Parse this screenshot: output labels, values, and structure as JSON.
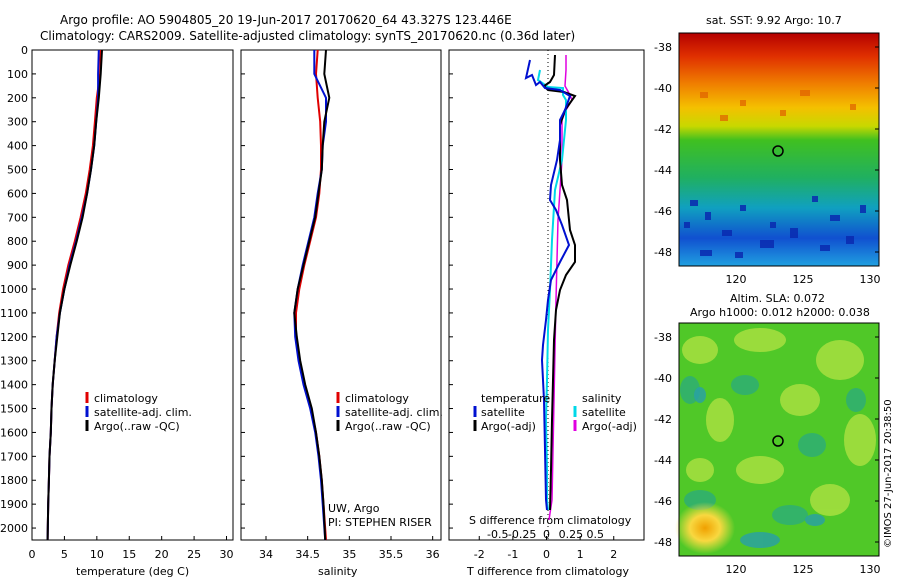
{
  "header": {
    "line1": "Argo profile: AO 5904805_20 19-Jun-2017 20170620_64 43.327S 123.446E",
    "line2": "Climatology: CARS2009. Satellite-adjusted climatology: synTS_20170620.nc (0.36d later)"
  },
  "colors": {
    "climatology": "#e00000",
    "satellite": "#0010d0",
    "argo": "#000000",
    "sal_satellite": "#00d8e8",
    "sal_argo": "#e000e0"
  },
  "depth_axis": {
    "ticks": [
      "0",
      "100",
      "200",
      "300",
      "400",
      "500",
      "600",
      "700",
      "800",
      "900",
      "1000",
      "1100",
      "1200",
      "1300",
      "1400",
      "1500",
      "1600",
      "1700",
      "1800",
      "1900",
      "2000"
    ]
  },
  "temp_panel": {
    "xlabel": "temperature (deg C)",
    "xticks": [
      "0",
      "5",
      "10",
      "15",
      "20",
      "25",
      "30"
    ],
    "legend": [
      "climatology",
      "satellite-adj. clim.",
      "Argo(..raw -QC)"
    ]
  },
  "sal_panel": {
    "xlabel": "salinity",
    "xticks": [
      "34",
      "34.5",
      "35",
      "35.5",
      "36"
    ],
    "legend": [
      "climatology",
      "satellite-adj. clim.",
      "Argo(..raw -QC)"
    ],
    "note1": "UW, Argo",
    "note2": "PI: STEPHEN RISER"
  },
  "diff_panel": {
    "xlabel": "T difference from climatology",
    "xticks": [
      "-2",
      "-1",
      "0",
      "1",
      "2"
    ],
    "top_label": "S difference from climatology",
    "s_ticks": [
      "-0.5",
      "-0.25",
      "0",
      "0.25",
      "0.5"
    ],
    "legend_temp_title": "temperature",
    "legend_sal_title": "salinity",
    "legend_temp": [
      "satellite",
      "Argo(-adj)"
    ],
    "legend_sal": [
      "satellite",
      "Argo(-adj)"
    ]
  },
  "sst_map": {
    "title": "sat. SST: 9.92  Argo: 10.7",
    "yticks": [
      "-38",
      "-40",
      "-42",
      "-44",
      "-46",
      "-48"
    ],
    "xticks": [
      "120",
      "125",
      "130"
    ]
  },
  "sla_map": {
    "title1": "Altim. SLA: 0.072",
    "title2": "Argo h1000: 0.012 h2000: 0.038",
    "yticks": [
      "-38",
      "-40",
      "-42",
      "-44",
      "-46",
      "-48"
    ],
    "xticks": [
      "120",
      "125",
      "130"
    ]
  },
  "credit": "©IMOS 27-Jun-2017 20:38:50",
  "chart_data": [
    {
      "type": "line",
      "xlabel": "temperature (deg C)",
      "ylabel": "",
      "xlim": [
        0,
        31
      ],
      "ylim": [
        2050,
        0
      ],
      "series": [
        {
          "name": "climatology",
          "x": [
            10.6,
            10.5,
            10.0,
            9.7,
            9.4,
            8.9,
            8.3,
            7.5,
            6.6,
            5.6,
            4.8,
            4.2,
            3.8,
            3.5,
            3.2,
            3.0,
            2.9,
            2.7,
            2.6,
            2.5,
            2.4
          ],
          "y": [
            0,
            100,
            200,
            300,
            400,
            500,
            600,
            700,
            800,
            900,
            1000,
            1100,
            1200,
            1300,
            1400,
            1500,
            1600,
            1700,
            1800,
            1900,
            2050
          ]
        },
        {
          "name": "satellite-adj. clim.",
          "x": [
            10.3,
            10.2,
            10.2,
            9.9,
            9.6,
            9.1,
            8.5,
            7.7,
            6.8,
            5.8,
            5.0,
            4.3,
            3.8,
            3.5,
            3.2,
            3.0,
            2.9,
            2.7,
            2.6,
            2.5,
            2.4
          ],
          "y": [
            0,
            100,
            200,
            300,
            400,
            500,
            600,
            700,
            800,
            900,
            1000,
            1100,
            1200,
            1300,
            1400,
            1500,
            1600,
            1700,
            1800,
            1900,
            2050
          ]
        },
        {
          "name": "Argo(..raw -QC)",
          "x": [
            10.8,
            10.6,
            10.3,
            9.9,
            9.6,
            9.1,
            8.5,
            7.8,
            6.9,
            5.9,
            5.0,
            4.3,
            3.9,
            3.5,
            3.2,
            3.0,
            2.9,
            2.7,
            2.6,
            2.5,
            2.4
          ],
          "y": [
            0,
            100,
            200,
            300,
            400,
            500,
            600,
            700,
            800,
            900,
            1000,
            1100,
            1200,
            1300,
            1400,
            1500,
            1600,
            1700,
            1800,
            1900,
            2050
          ]
        }
      ]
    },
    {
      "type": "line",
      "xlabel": "salinity",
      "xlim": [
        33.7,
        36.1
      ],
      "ylim": [
        2050,
        0
      ],
      "series": [
        {
          "name": "climatology",
          "x": [
            34.62,
            34.6,
            34.62,
            34.65,
            34.66,
            34.66,
            34.64,
            34.6,
            34.53,
            34.46,
            34.4,
            34.36,
            34.36,
            34.4,
            34.46,
            34.54,
            34.6,
            34.64,
            34.67,
            34.69,
            34.72
          ],
          "y": [
            0,
            100,
            200,
            300,
            400,
            500,
            600,
            700,
            800,
            900,
            1000,
            1100,
            1200,
            1300,
            1400,
            1500,
            1600,
            1700,
            1800,
            1900,
            2050
          ]
        },
        {
          "name": "satellite-adj. clim.",
          "x": [
            34.58,
            34.58,
            34.72,
            34.72,
            34.68,
            34.67,
            34.62,
            34.58,
            34.51,
            34.44,
            34.38,
            34.34,
            34.35,
            34.39,
            34.45,
            34.53,
            34.59,
            34.63,
            34.66,
            34.68,
            34.71
          ],
          "y": [
            0,
            100,
            200,
            300,
            400,
            500,
            600,
            700,
            800,
            900,
            1000,
            1100,
            1200,
            1300,
            1400,
            1500,
            1600,
            1700,
            1800,
            1900,
            2050
          ]
        },
        {
          "name": "Argo(..raw -QC)",
          "x": [
            34.72,
            34.7,
            34.76,
            34.7,
            34.68,
            34.67,
            34.63,
            34.59,
            34.52,
            34.45,
            34.38,
            34.34,
            34.37,
            34.41,
            34.47,
            34.55,
            34.6,
            34.64,
            34.67,
            34.69,
            34.71
          ],
          "y": [
            0,
            100,
            200,
            300,
            400,
            500,
            600,
            700,
            800,
            900,
            1000,
            1100,
            1200,
            1300,
            1400,
            1500,
            1600,
            1700,
            1800,
            1900,
            2050
          ]
        }
      ]
    },
    {
      "type": "line",
      "xlabel": "T difference from climatology",
      "xlim": [
        -2.9,
        2.9
      ],
      "ylim": [
        2050,
        0
      ],
      "series": [
        {
          "name": "temperature satellite",
          "x": [
            -0.4,
            0.0,
            0.5,
            0.5,
            0.4,
            0.5,
            0.6,
            1.0,
            1.0,
            0.6,
            0.5,
            0.4,
            0.1,
            0.0,
            0.0,
            0.0,
            0.0,
            0.0,
            0.0,
            0.0,
            0.0
          ],
          "y": [
            0,
            100,
            200,
            300,
            400,
            500,
            600,
            700,
            800,
            900,
            1000,
            1100,
            1200,
            1300,
            1400,
            1500,
            1600,
            1700,
            1800,
            1900,
            2000
          ]
        },
        {
          "name": "temperature Argo(-adj)",
          "x": [
            0.5,
            0.7,
            0.5,
            0.4,
            0.4,
            0.5,
            0.7,
            1.0,
            1.2,
            0.9,
            0.6,
            0.4,
            0.3,
            0.2,
            0.2,
            0.2,
            0.1,
            0.1,
            0.1,
            0.1,
            0.1
          ],
          "y": [
            0,
            100,
            200,
            300,
            400,
            500,
            600,
            700,
            800,
            900,
            1000,
            1100,
            1200,
            1300,
            1400,
            1500,
            1600,
            1700,
            1800,
            1900,
            2000
          ]
        }
      ]
    }
  ]
}
